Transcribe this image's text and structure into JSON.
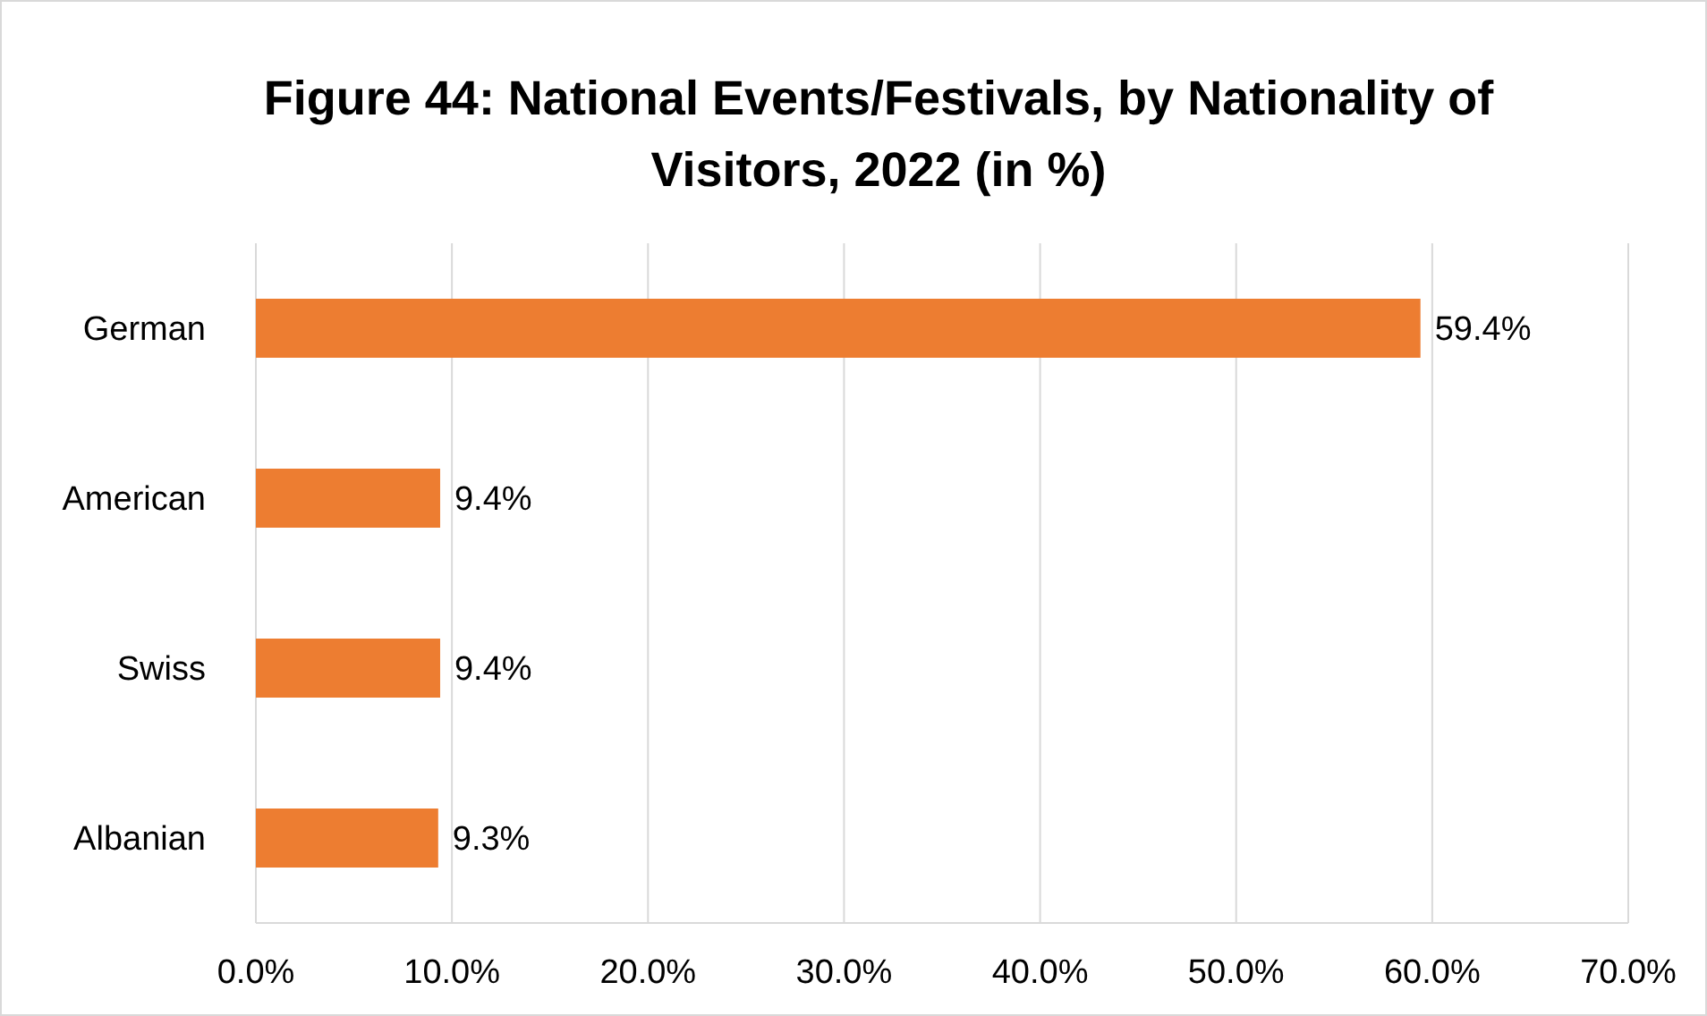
{
  "chart_data": {
    "type": "bar",
    "orientation": "horizontal",
    "title": "Figure 44: National Events/Festivals, by Nationality of Visitors, 2022 (in %)",
    "categories": [
      "German",
      "American",
      "Swiss",
      "Albanian"
    ],
    "values": [
      59.4,
      9.4,
      9.4,
      9.3
    ],
    "value_labels": [
      "59.4%",
      "9.4%",
      "9.4%",
      "9.3%"
    ],
    "color": "#ed7d31",
    "xlim": [
      0,
      70
    ],
    "xticks": [
      {
        "value": 0,
        "label": "0.0%"
      },
      {
        "value": 10,
        "label": "10.0%"
      },
      {
        "value": 20,
        "label": "20.0%"
      },
      {
        "value": 30,
        "label": "30.0%"
      },
      {
        "value": 40,
        "label": "40.0%"
      },
      {
        "value": 50,
        "label": "50.0%"
      },
      {
        "value": 60,
        "label": "60.0%"
      },
      {
        "value": 70,
        "label": "70.0%"
      }
    ],
    "grid": "x"
  }
}
